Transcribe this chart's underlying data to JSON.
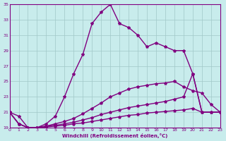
{
  "xlabel": "Windchill (Refroidissement éolien,°C)",
  "background_color": "#c8ecec",
  "line_color": "#800080",
  "grid_color": "#a0c8c8",
  "xlim": [
    0,
    23
  ],
  "ylim": [
    19,
    35
  ],
  "xticks": [
    0,
    1,
    2,
    3,
    4,
    5,
    6,
    7,
    8,
    9,
    10,
    11,
    12,
    13,
    14,
    15,
    16,
    17,
    18,
    19,
    20,
    21,
    22,
    23
  ],
  "yticks": [
    19,
    21,
    23,
    25,
    27,
    29,
    31,
    33,
    35
  ],
  "line1_x": [
    0,
    1,
    2,
    3,
    4,
    5,
    6,
    7,
    8,
    9,
    10,
    11,
    12,
    13,
    14,
    15,
    16,
    17,
    18,
    19,
    20,
    21,
    22,
    23
  ],
  "line1_y": [
    21.0,
    20.5,
    19.0,
    19.0,
    19.5,
    20.5,
    23.0,
    26.0,
    28.5,
    32.5,
    34.0,
    35.0,
    32.5,
    32.0,
    31.0,
    29.5,
    30.0,
    29.5,
    29.0,
    29.0,
    26.0,
    21.0,
    21.0,
    21.0
  ],
  "line2_x": [
    0,
    1,
    2,
    3,
    4,
    5,
    6,
    7,
    8,
    9,
    10,
    11,
    12,
    13,
    14,
    15,
    16,
    17,
    18,
    19,
    20,
    21,
    22,
    23
  ],
  "line2_y": [
    21.0,
    19.5,
    19.0,
    19.0,
    19.2,
    19.5,
    19.8,
    20.2,
    20.8,
    21.5,
    22.2,
    23.0,
    23.5,
    24.0,
    24.3,
    24.5,
    24.7,
    24.8,
    25.0,
    24.3,
    23.8,
    23.5,
    22.0,
    21.0
  ],
  "line3_x": [
    0,
    1,
    2,
    3,
    4,
    5,
    6,
    7,
    8,
    9,
    10,
    11,
    12,
    13,
    14,
    15,
    16,
    17,
    18,
    19,
    20,
    21,
    22,
    23
  ],
  "line3_y": [
    21.0,
    19.5,
    19.0,
    19.0,
    19.2,
    19.3,
    19.5,
    19.7,
    20.0,
    20.3,
    20.7,
    21.0,
    21.3,
    21.6,
    21.8,
    22.0,
    22.2,
    22.4,
    22.7,
    23.0,
    26.0,
    21.0,
    21.0,
    21.0
  ],
  "line4_x": [
    0,
    1,
    2,
    3,
    4,
    5,
    6,
    7,
    8,
    9,
    10,
    11,
    12,
    13,
    14,
    15,
    16,
    17,
    18,
    19,
    20,
    21,
    22,
    23
  ],
  "line4_y": [
    21.0,
    19.5,
    19.0,
    19.0,
    19.1,
    19.2,
    19.3,
    19.5,
    19.6,
    19.8,
    20.0,
    20.2,
    20.4,
    20.6,
    20.7,
    20.9,
    21.0,
    21.1,
    21.2,
    21.3,
    21.5,
    21.0,
    21.0,
    21.0
  ]
}
